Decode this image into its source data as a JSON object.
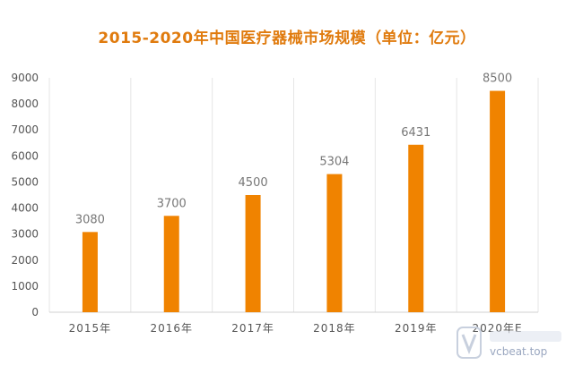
{
  "chart_data": {
    "type": "bar",
    "title": "2015-2020年中国医疗器械市场规模（单位：亿元）",
    "categories": [
      "2015年",
      "2016年",
      "2017年",
      "2018年",
      "2019年",
      "2020年E"
    ],
    "values": [
      3080,
      3700,
      4500,
      5304,
      6431,
      8500
    ],
    "data_labels": [
      "3080",
      "3700",
      "4500",
      "5304",
      "6431",
      "8500"
    ],
    "ylim": [
      0,
      9000
    ],
    "yticks": [
      "0",
      "1000",
      "2000",
      "3000",
      "4000",
      "5000",
      "6000",
      "7000",
      "8000",
      "9000"
    ],
    "xlabel": "",
    "ylabel": "",
    "grid": "vertical",
    "bar_color": "#f08300",
    "title_color": "#e07b0e"
  },
  "watermark": {
    "text": "vcbeat.top",
    "icon": "vcbeat-logo-icon"
  }
}
